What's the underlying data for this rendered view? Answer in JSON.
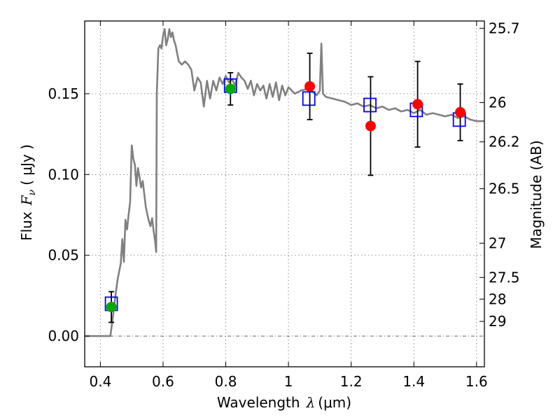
{
  "chart_data": {
    "type": "scatter",
    "title": "",
    "xlabel": "Wavelength",
    "xlabel_symbol": "λ",
    "xlabel_unit": "(μm)",
    "ylabel": "Flux",
    "ylabel_symbol": "F",
    "ylabel_subscript": "ν",
    "ylabel_unit": "( μJy )",
    "ylabel_right": "Magnitude (AB)",
    "xlim": [
      0.35,
      1.625
    ],
    "ylim": [
      -0.019,
      0.195
    ],
    "x_ticks": [
      0.4,
      0.6,
      0.8,
      1.0,
      1.2,
      1.4,
      1.6
    ],
    "x_tick_labels": [
      "0.4",
      "0.6",
      "0.8",
      "1",
      "1.2",
      "1.4",
      "1.6"
    ],
    "y_ticks": [
      0.0,
      0.05,
      0.1,
      0.15
    ],
    "y_tick_labels": [
      "0.00",
      "0.05",
      "0.10",
      "0.15"
    ],
    "right_ticks": [
      {
        "label": "25.7",
        "flux": 0.1905
      },
      {
        "label": "26",
        "flux": 0.1445
      },
      {
        "label": "26.2",
        "flux": 0.1202
      },
      {
        "label": "26.5",
        "flux": 0.0912
      },
      {
        "label": "27",
        "flux": 0.0575
      },
      {
        "label": "27.5",
        "flux": 0.0363
      },
      {
        "label": "28",
        "flux": 0.0229
      },
      {
        "label": "29",
        "flux": 0.0091
      }
    ],
    "grid": true,
    "zero_line": true,
    "colors": {
      "model": "#808080",
      "model_points": "#0000ff",
      "obs_red": "#ff0000",
      "obs_green": "#00aa00",
      "errorbar": "#000000"
    },
    "model_spectrum": {
      "x": [
        0.35,
        0.4,
        0.42,
        0.432,
        0.44,
        0.45,
        0.455,
        0.46,
        0.465,
        0.47,
        0.475,
        0.48,
        0.485,
        0.49,
        0.495,
        0.5,
        0.505,
        0.51,
        0.515,
        0.52,
        0.525,
        0.53,
        0.535,
        0.54,
        0.545,
        0.55,
        0.555,
        0.56,
        0.565,
        0.57,
        0.575,
        0.578,
        0.58,
        0.585,
        0.59,
        0.595,
        0.6,
        0.605,
        0.61,
        0.615,
        0.62,
        0.625,
        0.63,
        0.635,
        0.64,
        0.645,
        0.65,
        0.66,
        0.67,
        0.68,
        0.69,
        0.7,
        0.71,
        0.72,
        0.73,
        0.74,
        0.75,
        0.76,
        0.77,
        0.78,
        0.79,
        0.8,
        0.81,
        0.82,
        0.83,
        0.84,
        0.85,
        0.86,
        0.87,
        0.88,
        0.89,
        0.9,
        0.91,
        0.92,
        0.93,
        0.94,
        0.95,
        0.96,
        0.97,
        0.98,
        0.99,
        1.0,
        1.02,
        1.04,
        1.06,
        1.08,
        1.09,
        1.1,
        1.105,
        1.11,
        1.12,
        1.14,
        1.16,
        1.18,
        1.2,
        1.22,
        1.24,
        1.26,
        1.28,
        1.3,
        1.32,
        1.34,
        1.36,
        1.38,
        1.4,
        1.42,
        1.44,
        1.46,
        1.48,
        1.5,
        1.52,
        1.54,
        1.56,
        1.58,
        1.6,
        1.625
      ],
      "y": [
        0.0,
        0.0,
        0.0,
        0.0,
        0.012,
        0.028,
        0.035,
        0.04,
        0.045,
        0.06,
        0.046,
        0.072,
        0.066,
        0.075,
        0.083,
        0.118,
        0.11,
        0.106,
        0.093,
        0.104,
        0.098,
        0.092,
        0.096,
        0.088,
        0.08,
        0.075,
        0.071,
        0.068,
        0.073,
        0.065,
        0.058,
        0.052,
        0.15,
        0.178,
        0.18,
        0.178,
        0.186,
        0.19,
        0.18,
        0.184,
        0.19,
        0.185,
        0.188,
        0.183,
        0.18,
        0.175,
        0.17,
        0.168,
        0.17,
        0.168,
        0.165,
        0.152,
        0.16,
        0.157,
        0.142,
        0.158,
        0.147,
        0.158,
        0.152,
        0.16,
        0.156,
        0.161,
        0.157,
        0.159,
        0.155,
        0.163,
        0.16,
        0.158,
        0.153,
        0.158,
        0.149,
        0.156,
        0.152,
        0.155,
        0.147,
        0.156,
        0.148,
        0.157,
        0.146,
        0.155,
        0.149,
        0.154,
        0.15,
        0.152,
        0.153,
        0.151,
        0.149,
        0.152,
        0.181,
        0.15,
        0.148,
        0.147,
        0.146,
        0.145,
        0.143,
        0.144,
        0.142,
        0.143,
        0.141,
        0.142,
        0.14,
        0.141,
        0.139,
        0.14,
        0.138,
        0.14,
        0.137,
        0.138,
        0.137,
        0.136,
        0.137,
        0.135,
        0.136,
        0.134,
        0.133,
        0.133
      ]
    },
    "model_points": {
      "name": "",
      "marker": "square",
      "x": [
        0.435,
        0.815,
        1.065,
        1.26,
        1.408,
        1.545
      ],
      "y": [
        0.02,
        0.155,
        0.147,
        0.143,
        0.14,
        0.134
      ]
    },
    "observed": [
      {
        "x": 0.435,
        "y": 0.018,
        "yerr": 0.0095,
        "color": "green"
      },
      {
        "x": 0.815,
        "y": 0.153,
        "yerr": 0.01,
        "color": "green"
      },
      {
        "x": 1.068,
        "y": 0.1545,
        "yerr": 0.0205,
        "color": "red"
      },
      {
        "x": 1.262,
        "y": 0.13,
        "yerr": 0.0305,
        "color": "red"
      },
      {
        "x": 1.412,
        "y": 0.1435,
        "yerr": 0.0265,
        "color": "red"
      },
      {
        "x": 1.548,
        "y": 0.1385,
        "yerr": 0.0175,
        "color": "red"
      }
    ]
  }
}
